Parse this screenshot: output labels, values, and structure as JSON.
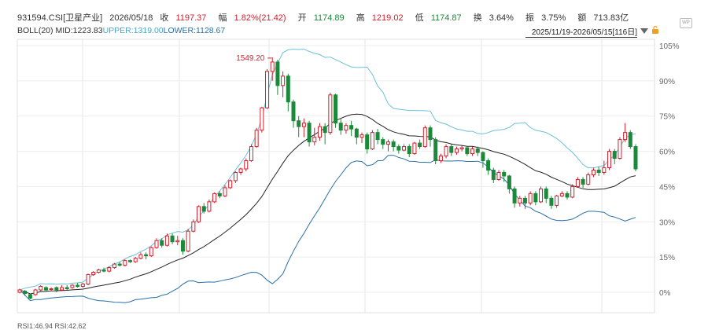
{
  "quote": {
    "code": "931594.CSI[卫星产业]",
    "date": "2026/05/18",
    "close_label": "收",
    "close": "1197.37",
    "change_label": "幅",
    "change": "1.82%(21.42)",
    "open_label": "开",
    "open": "1174.89",
    "high_label": "高",
    "high": "1219.02",
    "low_label": "低",
    "low": "1174.87",
    "turnover_label": "换",
    "turnover": "3.64%",
    "amp_label": "振",
    "amp": "3.75%",
    "amount_label": "额",
    "amount": "713.83亿"
  },
  "boll": {
    "name": "BOLL(20)",
    "mid": "MID:1223.83",
    "upper": "UPPER:1319.00",
    "lower": "LOWER:1128.67"
  },
  "range": "2025/11/19-2026/05/15[116日]",
  "icons": {
    "dropdown": "dropdown-triangle-icon",
    "lock": "lock-icon",
    "wp": "wp-logo-icon"
  },
  "wp_text": "WP",
  "colors": {
    "up": "#d4202c",
    "down": "#1a8a3a",
    "upper_band": "#6cc0d6",
    "lower_band": "#2a6fa8",
    "mid": "#222222"
  },
  "chart_data": {
    "type": "candlestick",
    "y_axis_unit": "percent_change",
    "yticks": [
      "105%",
      "90%",
      "75%",
      "60%",
      "45%",
      "30%",
      "15%",
      "0%"
    ],
    "ytick_values": [
      105,
      90,
      75,
      60,
      45,
      30,
      15,
      0
    ],
    "ylim": [
      -8,
      110
    ],
    "peak_label": "1549.20",
    "candles": [
      [
        0.0,
        1.0,
        -0.5,
        1.5
      ],
      [
        0.5,
        -0.5,
        -1.5,
        1.0
      ],
      [
        -1.0,
        -2.5,
        -3.0,
        -0.5
      ],
      [
        -1.0,
        1.0,
        -1.5,
        1.5
      ],
      [
        1.0,
        2.5,
        0.5,
        3.0
      ],
      [
        2.0,
        1.0,
        0.5,
        2.5
      ],
      [
        1.5,
        1.5,
        0.5,
        2.0
      ],
      [
        2.0,
        1.0,
        0.0,
        2.5
      ],
      [
        1.0,
        2.0,
        0.5,
        3.0
      ],
      [
        2.0,
        1.5,
        1.0,
        3.0
      ],
      [
        2.0,
        3.0,
        1.5,
        3.5
      ],
      [
        3.0,
        2.5,
        2.0,
        4.0
      ],
      [
        2.5,
        3.5,
        2.0,
        4.0
      ],
      [
        3.5,
        7.5,
        3.0,
        8.0
      ],
      [
        7.5,
        8.5,
        7.0,
        9.0
      ],
      [
        8.5,
        9.5,
        8.0,
        10.0
      ],
      [
        9.5,
        9.0,
        8.5,
        10.5
      ],
      [
        9.0,
        10.5,
        8.5,
        11.0
      ],
      [
        10.5,
        12.0,
        10.0,
        12.5
      ],
      [
        12.0,
        11.5,
        11.0,
        13.0
      ],
      [
        11.5,
        13.5,
        11.0,
        14.0
      ],
      [
        13.5,
        13.0,
        12.5,
        14.0
      ],
      [
        13.0,
        14.5,
        12.5,
        15.0
      ],
      [
        14.5,
        16.0,
        14.0,
        17.0
      ],
      [
        16.0,
        15.5,
        14.0,
        17.0
      ],
      [
        15.5,
        19.0,
        15.0,
        19.5
      ],
      [
        19.0,
        22.0,
        18.5,
        23.0
      ],
      [
        22.0,
        20.0,
        19.0,
        23.0
      ],
      [
        20.0,
        24.0,
        19.5,
        25.0
      ],
      [
        24.0,
        21.5,
        20.5,
        25.0
      ],
      [
        21.5,
        22.0,
        20.0,
        24.0
      ],
      [
        22.0,
        17.5,
        16.0,
        23.0
      ],
      [
        17.5,
        26.0,
        17.0,
        27.0
      ],
      [
        26.0,
        30.0,
        25.5,
        31.0
      ],
      [
        30.0,
        36.5,
        29.5,
        37.0
      ],
      [
        36.5,
        34.5,
        33.5,
        38.0
      ],
      [
        34.5,
        38.5,
        34.0,
        39.5
      ],
      [
        38.5,
        42.0,
        38.0,
        42.5
      ],
      [
        42.0,
        41.0,
        40.0,
        43.0
      ],
      [
        41.0,
        44.5,
        40.5,
        45.5
      ],
      [
        44.5,
        47.5,
        44.0,
        48.0
      ],
      [
        47.5,
        51.0,
        46.5,
        51.5
      ],
      [
        51.0,
        52.5,
        50.0,
        53.0
      ],
      [
        52.5,
        56.0,
        51.5,
        57.0
      ],
      [
        56.0,
        62.0,
        55.5,
        63.0
      ],
      [
        62.0,
        69.0,
        61.5,
        70.0
      ],
      [
        69.0,
        78.5,
        68.0,
        79.0
      ],
      [
        78.5,
        94.0,
        78.0,
        95.0
      ],
      [
        94.0,
        98.0,
        90.0,
        100.0
      ],
      [
        98.0,
        88.0,
        84.0,
        99.0
      ],
      [
        88.0,
        92.0,
        83.0,
        94.0
      ],
      [
        92.0,
        81.0,
        77.0,
        93.0
      ],
      [
        81.0,
        73.0,
        70.0,
        82.0
      ],
      [
        73.0,
        70.5,
        66.0,
        75.0
      ],
      [
        70.5,
        72.0,
        66.0,
        74.0
      ],
      [
        72.0,
        64.0,
        62.0,
        73.0
      ],
      [
        64.0,
        66.0,
        62.5,
        70.0
      ],
      [
        66.0,
        70.5,
        64.5,
        72.0
      ],
      [
        70.5,
        68.0,
        63.0,
        72.0
      ],
      [
        68.0,
        84.0,
        67.0,
        85.0
      ],
      [
        84.0,
        72.0,
        70.0,
        84.5
      ],
      [
        72.0,
        69.0,
        67.0,
        74.0
      ],
      [
        69.0,
        71.0,
        67.5,
        72.0
      ],
      [
        71.0,
        69.5,
        66.5,
        73.0
      ],
      [
        69.5,
        66.0,
        63.0,
        70.0
      ],
      [
        66.0,
        67.0,
        63.5,
        68.0
      ],
      [
        67.0,
        61.0,
        59.0,
        68.0
      ],
      [
        61.0,
        68.0,
        60.5,
        69.0
      ],
      [
        68.0,
        65.0,
        63.0,
        69.5
      ],
      [
        65.0,
        63.0,
        61.0,
        66.0
      ],
      [
        63.0,
        64.0,
        60.0,
        65.0
      ],
      [
        64.0,
        62.0,
        60.0,
        65.0
      ],
      [
        62.0,
        60.5,
        59.0,
        63.0
      ],
      [
        60.5,
        62.0,
        60.0,
        63.0
      ],
      [
        62.0,
        59.0,
        57.5,
        63.0
      ],
      [
        59.0,
        63.5,
        58.5,
        64.0
      ],
      [
        63.5,
        62.0,
        61.0,
        65.0
      ],
      [
        62.0,
        70.0,
        61.5,
        71.0
      ],
      [
        70.0,
        65.0,
        62.0,
        71.0
      ],
      [
        65.0,
        56.0,
        54.5,
        66.0
      ],
      [
        56.0,
        58.0,
        55.0,
        59.0
      ],
      [
        58.0,
        62.0,
        57.0,
        63.0
      ],
      [
        62.0,
        59.5,
        58.0,
        63.0
      ],
      [
        59.5,
        61.0,
        58.5,
        62.0
      ],
      [
        61.0,
        61.5,
        60.0,
        62.5
      ],
      [
        61.5,
        59.0,
        58.0,
        62.0
      ],
      [
        59.0,
        61.0,
        58.0,
        62.0
      ],
      [
        61.0,
        59.5,
        58.0,
        62.0
      ],
      [
        59.5,
        56.0,
        53.0,
        60.0
      ],
      [
        56.0,
        52.0,
        50.0,
        57.0
      ],
      [
        52.0,
        48.0,
        46.5,
        53.0
      ],
      [
        48.0,
        51.0,
        47.5,
        52.0
      ],
      [
        51.0,
        49.5,
        47.0,
        52.0
      ],
      [
        49.5,
        44.0,
        42.0,
        50.0
      ],
      [
        44.0,
        38.0,
        36.0,
        45.0
      ],
      [
        38.0,
        40.0,
        36.5,
        41.0
      ],
      [
        40.0,
        38.0,
        35.5,
        41.0
      ],
      [
        38.0,
        42.0,
        37.0,
        43.0
      ],
      [
        42.0,
        38.5,
        37.0,
        43.0
      ],
      [
        38.5,
        44.0,
        38.0,
        45.0
      ],
      [
        44.0,
        40.0,
        38.0,
        45.0
      ],
      [
        40.0,
        37.0,
        35.5,
        41.0
      ],
      [
        37.0,
        41.0,
        36.0,
        41.5
      ],
      [
        41.0,
        42.0,
        40.5,
        43.0
      ],
      [
        42.0,
        40.5,
        39.5,
        43.0
      ],
      [
        40.5,
        45.0,
        40.0,
        46.0
      ],
      [
        45.0,
        48.0,
        44.5,
        49.0
      ],
      [
        48.0,
        46.0,
        44.5,
        49.0
      ],
      [
        46.0,
        50.0,
        45.5,
        51.0
      ],
      [
        50.0,
        52.0,
        49.0,
        53.0
      ],
      [
        52.0,
        51.0,
        49.5,
        53.5
      ],
      [
        51.0,
        53.0,
        50.0,
        56.0
      ],
      [
        53.0,
        60.0,
        52.0,
        61.0
      ],
      [
        60.0,
        57.0,
        54.5,
        61.0
      ],
      [
        57.0,
        65.0,
        56.5,
        66.0
      ],
      [
        65.0,
        68.0,
        64.0,
        72.0
      ],
      [
        68.0,
        62.0,
        61.0,
        69.0
      ],
      [
        62.0,
        52.5,
        51.5,
        63.0
      ]
    ]
  },
  "bottom_text": "RSI1:46.94 RSI:42.62"
}
